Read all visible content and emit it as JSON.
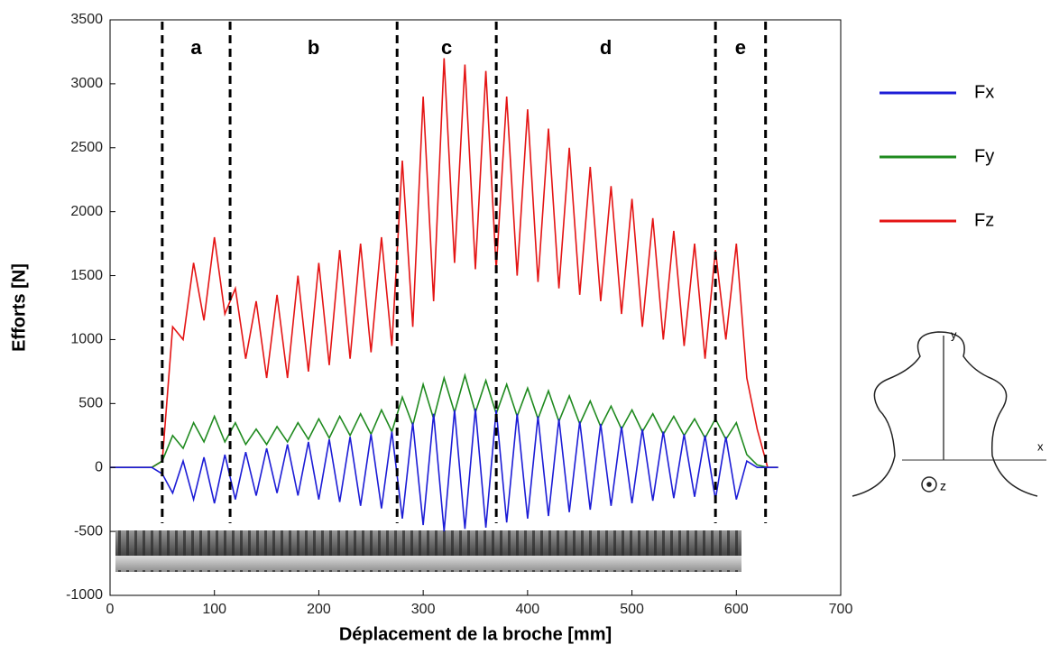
{
  "chart_data": {
    "type": "line",
    "x_label": "Déplacement de la broche [mm]",
    "y_label": "Efforts [N]",
    "x": [
      0,
      10,
      20,
      30,
      40,
      50,
      60,
      70,
      80,
      90,
      100,
      110,
      120,
      130,
      140,
      150,
      160,
      170,
      180,
      190,
      200,
      210,
      220,
      230,
      240,
      250,
      260,
      270,
      280,
      290,
      300,
      310,
      320,
      330,
      340,
      350,
      360,
      370,
      380,
      390,
      400,
      410,
      420,
      430,
      440,
      450,
      460,
      470,
      480,
      490,
      500,
      510,
      520,
      530,
      540,
      550,
      560,
      570,
      580,
      590,
      600,
      610,
      620,
      630,
      640
    ],
    "series": [
      {
        "name": "Fx",
        "color": "#1c1cd6",
        "values": [
          0,
          0,
          0,
          0,
          0,
          -50,
          -200,
          50,
          -250,
          80,
          -280,
          100,
          -250,
          120,
          -220,
          150,
          -200,
          180,
          -220,
          200,
          -250,
          220,
          -270,
          240,
          -300,
          260,
          -320,
          280,
          -400,
          350,
          -450,
          420,
          -500,
          450,
          -480,
          460,
          -470,
          450,
          -430,
          420,
          -400,
          400,
          -380,
          380,
          -350,
          360,
          -330,
          340,
          -300,
          320,
          -280,
          300,
          -260,
          280,
          -240,
          260,
          -230,
          250,
          -250,
          240,
          -250,
          50,
          0,
          0,
          0
        ]
      },
      {
        "name": "Fy",
        "color": "#1f8a1f",
        "values": [
          0,
          0,
          0,
          0,
          0,
          50,
          250,
          150,
          350,
          200,
          400,
          200,
          350,
          180,
          300,
          180,
          320,
          200,
          350,
          220,
          380,
          230,
          400,
          250,
          420,
          260,
          450,
          280,
          550,
          330,
          650,
          380,
          700,
          430,
          720,
          430,
          680,
          420,
          650,
          400,
          620,
          380,
          600,
          360,
          560,
          340,
          520,
          320,
          480,
          300,
          450,
          280,
          420,
          260,
          400,
          250,
          380,
          230,
          380,
          220,
          350,
          100,
          20,
          0,
          0
        ]
      },
      {
        "name": "Fz",
        "color": "#e41414",
        "values": [
          0,
          0,
          0,
          0,
          0,
          50,
          1100,
          1000,
          1600,
          1150,
          1800,
          1200,
          1400,
          850,
          1300,
          700,
          1350,
          700,
          1500,
          750,
          1600,
          800,
          1700,
          850,
          1750,
          900,
          1800,
          950,
          2400,
          1100,
          2900,
          1300,
          3200,
          1600,
          3150,
          1550,
          3100,
          1550,
          2900,
          1500,
          2800,
          1450,
          2650,
          1400,
          2500,
          1350,
          2350,
          1300,
          2200,
          1200,
          2100,
          1100,
          1950,
          1000,
          1850,
          950,
          1750,
          850,
          1700,
          1000,
          1750,
          700,
          300,
          0,
          0
        ]
      }
    ],
    "xlim": [
      0,
      700
    ],
    "xticks": [
      0,
      100,
      200,
      300,
      400,
      500,
      600,
      700
    ],
    "ylim": [
      -1000,
      3500
    ],
    "yticks": [
      -1000,
      -500,
      0,
      500,
      1000,
      1500,
      2000,
      2500,
      3000,
      3500
    ],
    "boundaries": [
      50,
      115,
      275,
      370,
      580,
      628
    ],
    "zones": [
      "a",
      "b",
      "c",
      "d",
      "e"
    ]
  },
  "inset_axes": {
    "y": "y",
    "x": "x",
    "z": "z"
  }
}
